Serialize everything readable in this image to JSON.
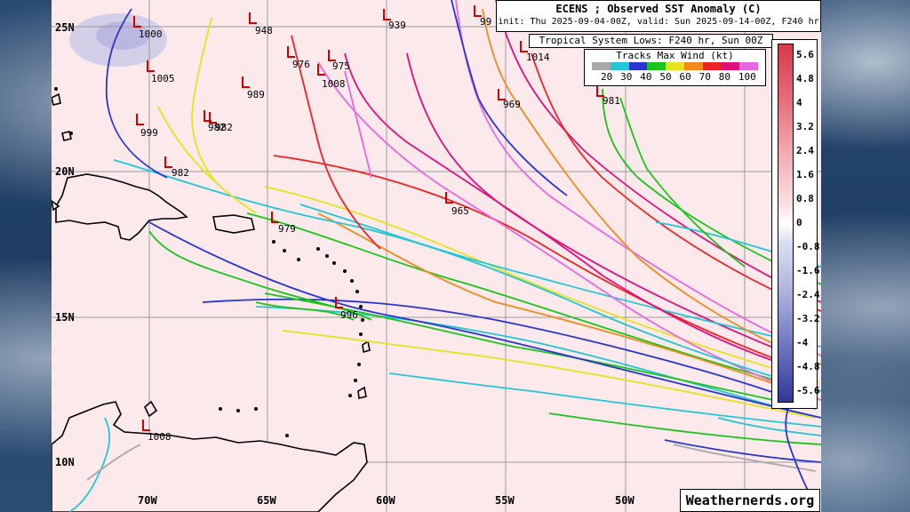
{
  "title": "ECENS ; Observed SST Anomaly (C)",
  "subtitle": "init: Thu 2025-09-04-00Z, valid: Sun 2025-09-14-00Z, F240 hr",
  "lows_title": "Tropical System Lows: F240 hr, Sun 00Z",
  "wind_legend": {
    "title": "Tracks Max Wind (kt)",
    "labels": [
      "20",
      "30",
      "40",
      "50",
      "60",
      "70",
      "80",
      "100"
    ],
    "colors": [
      "#a8a8a8",
      "#23c6d6",
      "#2a35d0",
      "#1bc41b",
      "#e6e21c",
      "#f08a1c",
      "#ec2424",
      "#e0107a",
      "#e866e0"
    ]
  },
  "scale": {
    "labels": [
      "5.6",
      "4.8",
      "4",
      "3.2",
      "2.4",
      "1.6",
      "0.8",
      "0",
      "-0.8",
      "-1.6",
      "-2.4",
      "-3.2",
      "-4",
      "-4.8",
      "-5.6"
    ]
  },
  "lat_labels": [
    "25N",
    "20N",
    "15N",
    "10N"
  ],
  "lon_labels": [
    "70W",
    "65W",
    "60W",
    "55W",
    "50W"
  ],
  "credit": "Weathernerds.org",
  "lows": [
    "1000",
    "948",
    "939",
    "99",
    "1014",
    "976",
    "975",
    "1005",
    "1008",
    "989",
    "969",
    "981",
    "999",
    "982",
    "982",
    "982",
    "965",
    "979",
    "996",
    "1008"
  ]
}
